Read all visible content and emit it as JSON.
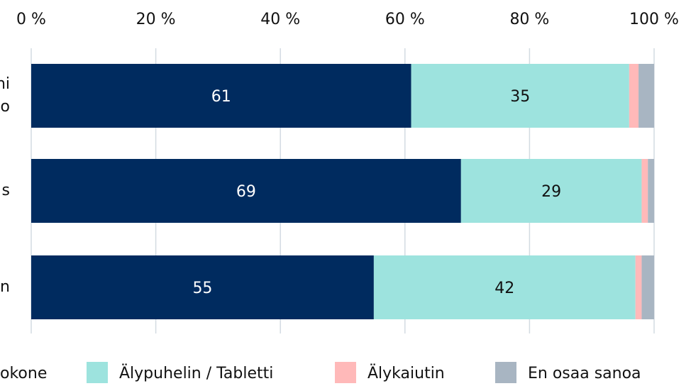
{
  "chart_data": {
    "type": "stacked-barh",
    "categories": [
      [
        "ni",
        "o"
      ],
      [
        "s"
      ],
      [
        "n"
      ]
    ],
    "series": [
      {
        "name": "okone",
        "color": "#002b5f",
        "values": [
          61,
          69,
          55
        ]
      },
      {
        "name": "Älypuhelin / Tabletti",
        "color": "#9de3de",
        "values": [
          35,
          29,
          42
        ]
      },
      {
        "name": "Älykaiutin",
        "color": "#ffb9b9",
        "values": [
          1.5,
          1,
          1
        ]
      },
      {
        "name": "En osaa sanoa",
        "color": "#a8b5c2",
        "values": [
          2.5,
          1,
          2
        ]
      }
    ],
    "xlim": [
      0,
      100
    ],
    "xticks": [
      {
        "value": 0,
        "label": "0 %"
      },
      {
        "value": 20,
        "label": "20 %"
      },
      {
        "value": 40,
        "label": "40 %"
      },
      {
        "value": 60,
        "label": "60 %"
      },
      {
        "value": 80,
        "label": "80 %"
      },
      {
        "value": 100,
        "label": "100 %"
      }
    ],
    "grid": true,
    "legend": "bottom"
  }
}
